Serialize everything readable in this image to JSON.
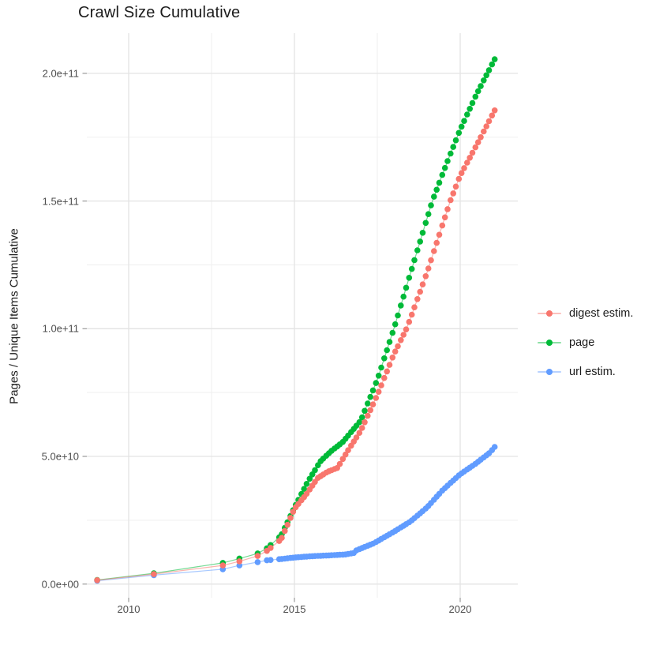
{
  "page_title": "Crawl Size Cumulative",
  "chart_data": {
    "type": "scatter",
    "title": "Crawl Size Cumulative",
    "xlabel": "",
    "ylabel": "Pages / Unique Items Cumulative",
    "value_unit": "items, values stored in billions (1e9)",
    "grid": true,
    "x_axis": {
      "ticks": [
        {
          "value": 2010,
          "label": "2010"
        },
        {
          "value": 2015,
          "label": "2015"
        },
        {
          "value": 2020,
          "label": "2020"
        }
      ],
      "minor_ticks": [
        2012.5,
        2017.5
      ],
      "range_years": [
        2008.7,
        2021.7
      ]
    },
    "y_axis": {
      "ticks": [
        {
          "value": 0,
          "label": "0.0e+00"
        },
        {
          "value": 50,
          "label": "5.0e+10"
        },
        {
          "value": 100,
          "label": "1.0e+11"
        },
        {
          "value": 150,
          "label": "1.5e+11"
        },
        {
          "value": 200,
          "label": "2.0e+11"
        }
      ],
      "minor_ticks": [
        25,
        75,
        125,
        175
      ],
      "range_billions": [
        -5.5,
        215.5
      ]
    },
    "legend": {
      "position": "right",
      "items": [
        {
          "label": "digest estim.",
          "color": "#F8766D"
        },
        {
          "label": "page",
          "color": "#00BA38"
        },
        {
          "label": "url estim.",
          "color": "#619CFF"
        }
      ]
    },
    "series": [
      {
        "name": "url estim.",
        "color": "#619CFF",
        "points_year_billions": [
          [
            2009.05,
            1.3
          ],
          [
            2010.76,
            3.5
          ],
          [
            2012.84,
            5.8
          ],
          [
            2013.34,
            7.3
          ],
          [
            2013.89,
            8.6
          ],
          [
            2014.17,
            9.3
          ],
          [
            2014.6,
            9.8
          ],
          [
            2015.0,
            10.4
          ],
          [
            2015.5,
            10.9
          ],
          [
            2016.0,
            11.2
          ],
          [
            2016.55,
            11.6
          ],
          [
            2016.8,
            12.2
          ],
          [
            2016.88,
            13.3
          ],
          [
            2017.0,
            13.9
          ],
          [
            2017.4,
            16.0
          ],
          [
            2018.0,
            20.5
          ],
          [
            2018.5,
            24.5
          ],
          [
            2019.0,
            30.0
          ],
          [
            2019.45,
            36.5
          ],
          [
            2019.7,
            39.5
          ],
          [
            2020.0,
            43.0
          ],
          [
            2020.45,
            47.0
          ],
          [
            2020.9,
            51.5
          ],
          [
            2021.04,
            53.7
          ]
        ]
      },
      {
        "name": "page",
        "color": "#00BA38",
        "points_year_billions": [
          [
            2009.05,
            1.6
          ],
          [
            2010.76,
            4.2
          ],
          [
            2012.84,
            8.3
          ],
          [
            2013.34,
            10.0
          ],
          [
            2013.89,
            12.0
          ],
          [
            2014.17,
            14.0
          ],
          [
            2014.6,
            19.0
          ],
          [
            2015.0,
            30.0
          ],
          [
            2015.4,
            40.0
          ],
          [
            2015.78,
            48.0
          ],
          [
            2016.1,
            52.0
          ],
          [
            2016.45,
            55.5
          ],
          [
            2017.0,
            64.0
          ],
          [
            2017.5,
            80.0
          ],
          [
            2018.0,
            100.0
          ],
          [
            2018.6,
            126.0
          ],
          [
            2019.16,
            150.0
          ],
          [
            2019.6,
            165.0
          ],
          [
            2020.0,
            178.0
          ],
          [
            2020.5,
            192.0
          ],
          [
            2021.04,
            205.5
          ]
        ]
      },
      {
        "name": "digest estim.",
        "color": "#F8766D",
        "points_year_billions": [
          [
            2009.05,
            1.5
          ],
          [
            2010.76,
            3.9
          ],
          [
            2012.84,
            7.3
          ],
          [
            2013.34,
            8.9
          ],
          [
            2013.89,
            11.0
          ],
          [
            2014.17,
            13.0
          ],
          [
            2014.6,
            17.5
          ],
          [
            2015.0,
            29.5
          ],
          [
            2015.35,
            35.0
          ],
          [
            2015.7,
            41.5
          ],
          [
            2016.0,
            44.0
          ],
          [
            2016.3,
            45.5
          ],
          [
            2016.6,
            52.0
          ],
          [
            2017.0,
            60.0
          ],
          [
            2017.5,
            74.0
          ],
          [
            2018.0,
            90.0
          ],
          [
            2018.4,
            100.5
          ],
          [
            2019.0,
            122.0
          ],
          [
            2019.7,
            150.0
          ],
          [
            2020.0,
            160.0
          ],
          [
            2020.5,
            172.0
          ],
          [
            2021.04,
            185.5
          ]
        ]
      }
    ],
    "crawl_sample_years": [
      2009.05,
      2010.76,
      2012.84,
      2013.34,
      2013.89,
      2014.17,
      2014.28,
      2014.54,
      2014.62,
      2014.71,
      2014.79,
      2014.88,
      2014.96,
      2015.04,
      2015.12,
      2015.21,
      2015.29,
      2015.37,
      2015.46,
      2015.54,
      2015.62,
      2015.71,
      2015.79,
      2015.87,
      2015.96,
      2016.04,
      2016.12,
      2016.21,
      2016.29,
      2016.37,
      2016.46,
      2016.54,
      2016.62,
      2016.71,
      2016.79,
      2016.87,
      2016.96,
      2017.04,
      2017.12,
      2017.21,
      2017.29,
      2017.37,
      2017.46,
      2017.54,
      2017.62,
      2017.71,
      2017.79,
      2017.87,
      2017.96,
      2018.04,
      2018.12,
      2018.21,
      2018.29,
      2018.37,
      2018.46,
      2018.54,
      2018.62,
      2018.71,
      2018.79,
      2018.87,
      2018.96,
      2019.04,
      2019.12,
      2019.21,
      2019.29,
      2019.37,
      2019.46,
      2019.54,
      2019.62,
      2019.71,
      2019.79,
      2019.87,
      2019.96,
      2020.04,
      2020.12,
      2020.21,
      2020.29,
      2020.37,
      2020.46,
      2020.54,
      2020.62,
      2020.71,
      2020.79,
      2020.87,
      2020.96,
      2021.04
    ]
  }
}
